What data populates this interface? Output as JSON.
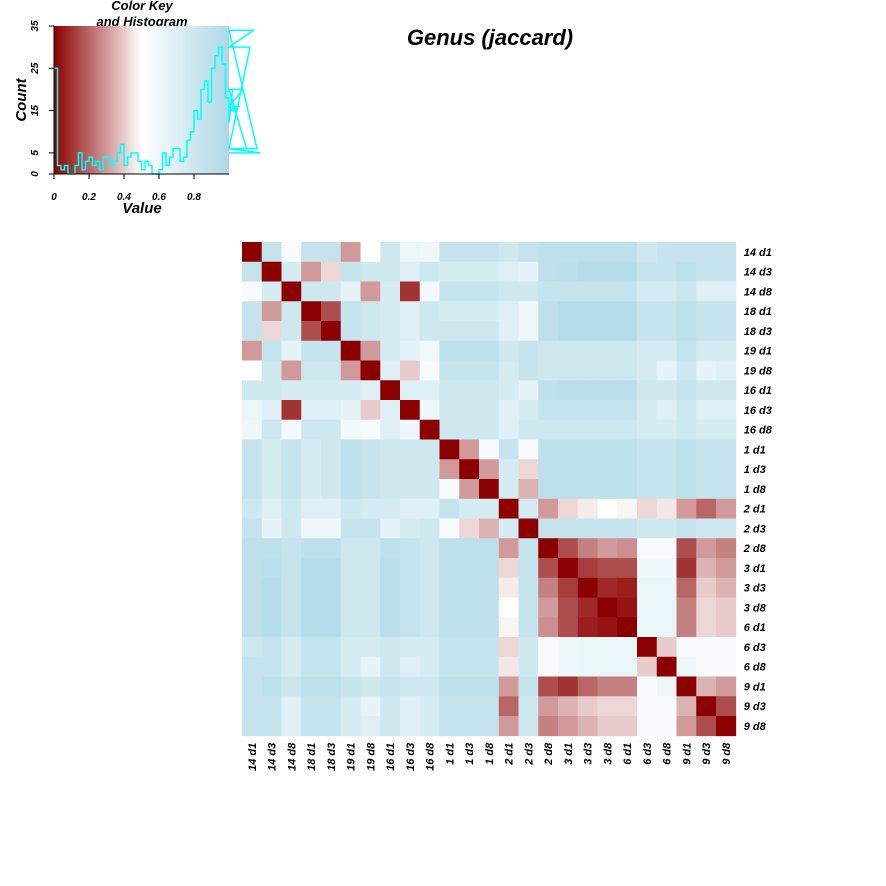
{
  "title": "Genus (jaccard)",
  "color_key": {
    "title_line1": "Color Key",
    "title_line2": "and Histogram",
    "xlabel": "Value",
    "ylabel": "Count",
    "x_ticks": [
      "0",
      "0.2",
      "0.4",
      "0.6",
      "0.8"
    ],
    "y_ticks": [
      "0",
      "5",
      "15",
      "25",
      "35"
    ],
    "colors": {
      "low": "#8B0000",
      "mid": "#FFFFFF",
      "high": "#ADD8E6",
      "histogram": "#00FFFF"
    }
  },
  "chart_data": [
    {
      "type": "heatmap",
      "title": "Genus (jaccard)",
      "rows": [
        "14 d1",
        "14 d3",
        "14 d8",
        "18 d1",
        "18 d3",
        "19 d1",
        "19 d8",
        "16 d1",
        "16 d3",
        "16 d8",
        "1 d1",
        "1 d3",
        "1 d8",
        "2 d1",
        "2 d3",
        "2 d8",
        "3 d1",
        "3 d3",
        "3 d8",
        "6 d1",
        "6 d3",
        "6 d8",
        "9 d1",
        "9 d3",
        "9 d8"
      ],
      "columns": [
        "14 d1",
        "14 d3",
        "14 d8",
        "18 d1",
        "18 d3",
        "19 d1",
        "19 d8",
        "16 d1",
        "16 d3",
        "16 d8",
        "1 d1",
        "1 d3",
        "1 d8",
        "2 d1",
        "2 d3",
        "2 d8",
        "3 d1",
        "3 d3",
        "3 d8",
        "6 d1",
        "6 d3",
        "6 d8",
        "9 d1",
        "9 d3",
        "9 d8"
      ],
      "value_range": [
        0,
        1
      ],
      "colors": {
        "low": "#8B0000",
        "mid": "#FFFFFF",
        "high": "#ADD8E6"
      },
      "values": [
        [
          0,
          0.86,
          0.55,
          0.86,
          0.86,
          0.3,
          0.5,
          0.8,
          0.62,
          0.6,
          0.85,
          0.85,
          0.85,
          0.8,
          0.85,
          0.9,
          0.9,
          0.9,
          0.9,
          0.9,
          0.8,
          0.85,
          0.85,
          0.85,
          0.85
        ],
        [
          0.86,
          0,
          0.75,
          0.3,
          0.42,
          0.85,
          0.8,
          0.8,
          0.7,
          0.8,
          0.75,
          0.75,
          0.75,
          0.7,
          0.65,
          0.9,
          0.92,
          0.95,
          0.95,
          0.95,
          0.85,
          0.85,
          0.9,
          0.85,
          0.85
        ],
        [
          0.55,
          0.75,
          0,
          0.8,
          0.8,
          0.65,
          0.3,
          0.75,
          0.1,
          0.58,
          0.85,
          0.85,
          0.85,
          0.8,
          0.8,
          0.85,
          0.85,
          0.85,
          0.85,
          0.85,
          0.75,
          0.75,
          0.82,
          0.7,
          0.7
        ],
        [
          0.86,
          0.3,
          0.8,
          0,
          0.15,
          0.85,
          0.8,
          0.75,
          0.7,
          0.8,
          0.75,
          0.75,
          0.75,
          0.7,
          0.6,
          0.9,
          0.95,
          0.95,
          0.95,
          0.95,
          0.85,
          0.85,
          0.9,
          0.85,
          0.85
        ],
        [
          0.86,
          0.42,
          0.8,
          0.15,
          0,
          0.85,
          0.8,
          0.75,
          0.7,
          0.8,
          0.8,
          0.8,
          0.8,
          0.7,
          0.6,
          0.9,
          0.95,
          0.95,
          0.95,
          0.95,
          0.85,
          0.85,
          0.9,
          0.85,
          0.85
        ],
        [
          0.3,
          0.85,
          0.65,
          0.85,
          0.85,
          0,
          0.3,
          0.75,
          0.65,
          0.58,
          0.9,
          0.9,
          0.9,
          0.8,
          0.85,
          0.8,
          0.8,
          0.8,
          0.8,
          0.8,
          0.75,
          0.75,
          0.85,
          0.75,
          0.75
        ],
        [
          0.5,
          0.8,
          0.3,
          0.8,
          0.8,
          0.3,
          0,
          0.7,
          0.4,
          0.55,
          0.85,
          0.85,
          0.85,
          0.75,
          0.85,
          0.8,
          0.8,
          0.8,
          0.8,
          0.8,
          0.75,
          0.65,
          0.8,
          0.65,
          0.7
        ],
        [
          0.8,
          0.8,
          0.75,
          0.75,
          0.75,
          0.75,
          0.7,
          0,
          0.7,
          0.7,
          0.8,
          0.8,
          0.8,
          0.75,
          0.65,
          0.9,
          0.92,
          0.92,
          0.92,
          0.92,
          0.8,
          0.8,
          0.85,
          0.8,
          0.8
        ],
        [
          0.62,
          0.7,
          0.1,
          0.7,
          0.7,
          0.65,
          0.4,
          0.7,
          0,
          0.6,
          0.8,
          0.8,
          0.8,
          0.7,
          0.75,
          0.85,
          0.85,
          0.85,
          0.85,
          0.85,
          0.75,
          0.7,
          0.8,
          0.7,
          0.7
        ],
        [
          0.6,
          0.8,
          0.58,
          0.8,
          0.8,
          0.58,
          0.55,
          0.7,
          0.6,
          0,
          0.8,
          0.8,
          0.8,
          0.7,
          0.8,
          0.8,
          0.8,
          0.8,
          0.8,
          0.8,
          0.75,
          0.75,
          0.8,
          0.75,
          0.75
        ],
        [
          0.85,
          0.75,
          0.85,
          0.75,
          0.8,
          0.9,
          0.85,
          0.8,
          0.8,
          0.8,
          0,
          0.3,
          0.55,
          0.85,
          0.55,
          0.9,
          0.9,
          0.9,
          0.9,
          0.9,
          0.85,
          0.85,
          0.9,
          0.85,
          0.85
        ],
        [
          0.85,
          0.75,
          0.85,
          0.75,
          0.8,
          0.9,
          0.85,
          0.8,
          0.8,
          0.8,
          0.3,
          0,
          0.3,
          0.75,
          0.42,
          0.9,
          0.9,
          0.9,
          0.9,
          0.9,
          0.85,
          0.85,
          0.9,
          0.85,
          0.85
        ],
        [
          0.85,
          0.75,
          0.85,
          0.75,
          0.8,
          0.9,
          0.85,
          0.8,
          0.8,
          0.8,
          0.55,
          0.3,
          0,
          0.75,
          0.35,
          0.9,
          0.9,
          0.9,
          0.9,
          0.9,
          0.85,
          0.85,
          0.9,
          0.85,
          0.85
        ],
        [
          0.8,
          0.7,
          0.8,
          0.7,
          0.7,
          0.8,
          0.75,
          0.75,
          0.7,
          0.7,
          0.85,
          0.75,
          0.75,
          0,
          0.75,
          0.3,
          0.42,
          0.46,
          0.5,
          0.48,
          0.42,
          0.45,
          0.3,
          0.2,
          0.3
        ],
        [
          0.85,
          0.65,
          0.8,
          0.6,
          0.6,
          0.85,
          0.85,
          0.65,
          0.75,
          0.8,
          0.55,
          0.42,
          0.35,
          0.75,
          0,
          0.85,
          0.85,
          0.85,
          0.85,
          0.85,
          0.8,
          0.8,
          0.85,
          0.8,
          0.8
        ],
        [
          0.9,
          0.9,
          0.85,
          0.9,
          0.9,
          0.8,
          0.8,
          0.9,
          0.85,
          0.8,
          0.9,
          0.9,
          0.9,
          0.3,
          0.85,
          0,
          0.15,
          0.25,
          0.3,
          0.28,
          0.55,
          0.55,
          0.15,
          0.3,
          0.25
        ],
        [
          0.9,
          0.92,
          0.85,
          0.95,
          0.95,
          0.8,
          0.8,
          0.92,
          0.85,
          0.8,
          0.9,
          0.9,
          0.9,
          0.42,
          0.85,
          0.15,
          0,
          0.12,
          0.15,
          0.15,
          0.6,
          0.6,
          0.1,
          0.35,
          0.3
        ],
        [
          0.9,
          0.95,
          0.85,
          0.95,
          0.95,
          0.8,
          0.8,
          0.92,
          0.85,
          0.8,
          0.9,
          0.9,
          0.9,
          0.46,
          0.85,
          0.25,
          0.12,
          0,
          0.08,
          0.06,
          0.62,
          0.62,
          0.2,
          0.4,
          0.35
        ],
        [
          0.9,
          0.95,
          0.85,
          0.95,
          0.95,
          0.8,
          0.8,
          0.92,
          0.85,
          0.8,
          0.9,
          0.9,
          0.9,
          0.5,
          0.85,
          0.3,
          0.15,
          0.08,
          0,
          0.04,
          0.62,
          0.62,
          0.25,
          0.42,
          0.4
        ],
        [
          0.9,
          0.95,
          0.85,
          0.95,
          0.95,
          0.8,
          0.8,
          0.92,
          0.85,
          0.8,
          0.9,
          0.9,
          0.9,
          0.48,
          0.85,
          0.28,
          0.15,
          0.06,
          0.04,
          0,
          0.62,
          0.62,
          0.25,
          0.42,
          0.4
        ],
        [
          0.8,
          0.85,
          0.75,
          0.85,
          0.85,
          0.75,
          0.75,
          0.8,
          0.75,
          0.75,
          0.85,
          0.85,
          0.85,
          0.42,
          0.8,
          0.55,
          0.6,
          0.62,
          0.62,
          0.62,
          0,
          0.4,
          0.55,
          0.55,
          0.55
        ],
        [
          0.85,
          0.85,
          0.75,
          0.85,
          0.85,
          0.75,
          0.65,
          0.8,
          0.7,
          0.75,
          0.85,
          0.85,
          0.85,
          0.45,
          0.8,
          0.55,
          0.6,
          0.62,
          0.62,
          0.62,
          0.4,
          0,
          0.6,
          0.55,
          0.55
        ],
        [
          0.85,
          0.9,
          0.82,
          0.9,
          0.9,
          0.85,
          0.8,
          0.85,
          0.8,
          0.8,
          0.9,
          0.9,
          0.9,
          0.3,
          0.85,
          0.15,
          0.1,
          0.2,
          0.25,
          0.25,
          0.55,
          0.6,
          0,
          0.35,
          0.3
        ],
        [
          0.85,
          0.85,
          0.7,
          0.85,
          0.85,
          0.75,
          0.65,
          0.8,
          0.7,
          0.75,
          0.85,
          0.85,
          0.85,
          0.2,
          0.8,
          0.3,
          0.35,
          0.4,
          0.42,
          0.42,
          0.55,
          0.55,
          0.35,
          0,
          0.15
        ],
        [
          0.85,
          0.85,
          0.7,
          0.85,
          0.85,
          0.75,
          0.7,
          0.8,
          0.7,
          0.75,
          0.85,
          0.85,
          0.85,
          0.3,
          0.8,
          0.25,
          0.3,
          0.35,
          0.4,
          0.4,
          0.55,
          0.55,
          0.3,
          0.15,
          0
        ]
      ]
    },
    {
      "type": "histogram",
      "title": "Color Key and Histogram",
      "xlabel": "Value",
      "ylabel": "Count",
      "xlim": [
        0,
        1
      ],
      "ylim": [
        0,
        35
      ],
      "x_ticks": [
        0,
        0.2,
        0.4,
        0.6,
        0.8
      ],
      "y_ticks": [
        0,
        5,
        15,
        25,
        35
      ],
      "bin_width": 0.02,
      "counts": [
        25,
        2,
        1,
        2,
        0,
        0,
        2,
        5,
        1,
        3,
        4,
        2,
        3,
        1,
        4,
        4,
        2,
        3,
        5,
        7,
        2,
        4,
        5,
        5,
        3,
        1,
        3,
        2,
        0,
        0,
        1,
        5,
        2,
        4,
        6,
        6,
        3,
        4,
        8,
        10,
        15,
        13,
        20,
        22,
        17,
        25,
        28,
        30,
        26,
        18,
        12,
        20,
        15,
        16,
        20,
        6,
        30,
        34,
        6,
        5
      ]
    }
  ]
}
